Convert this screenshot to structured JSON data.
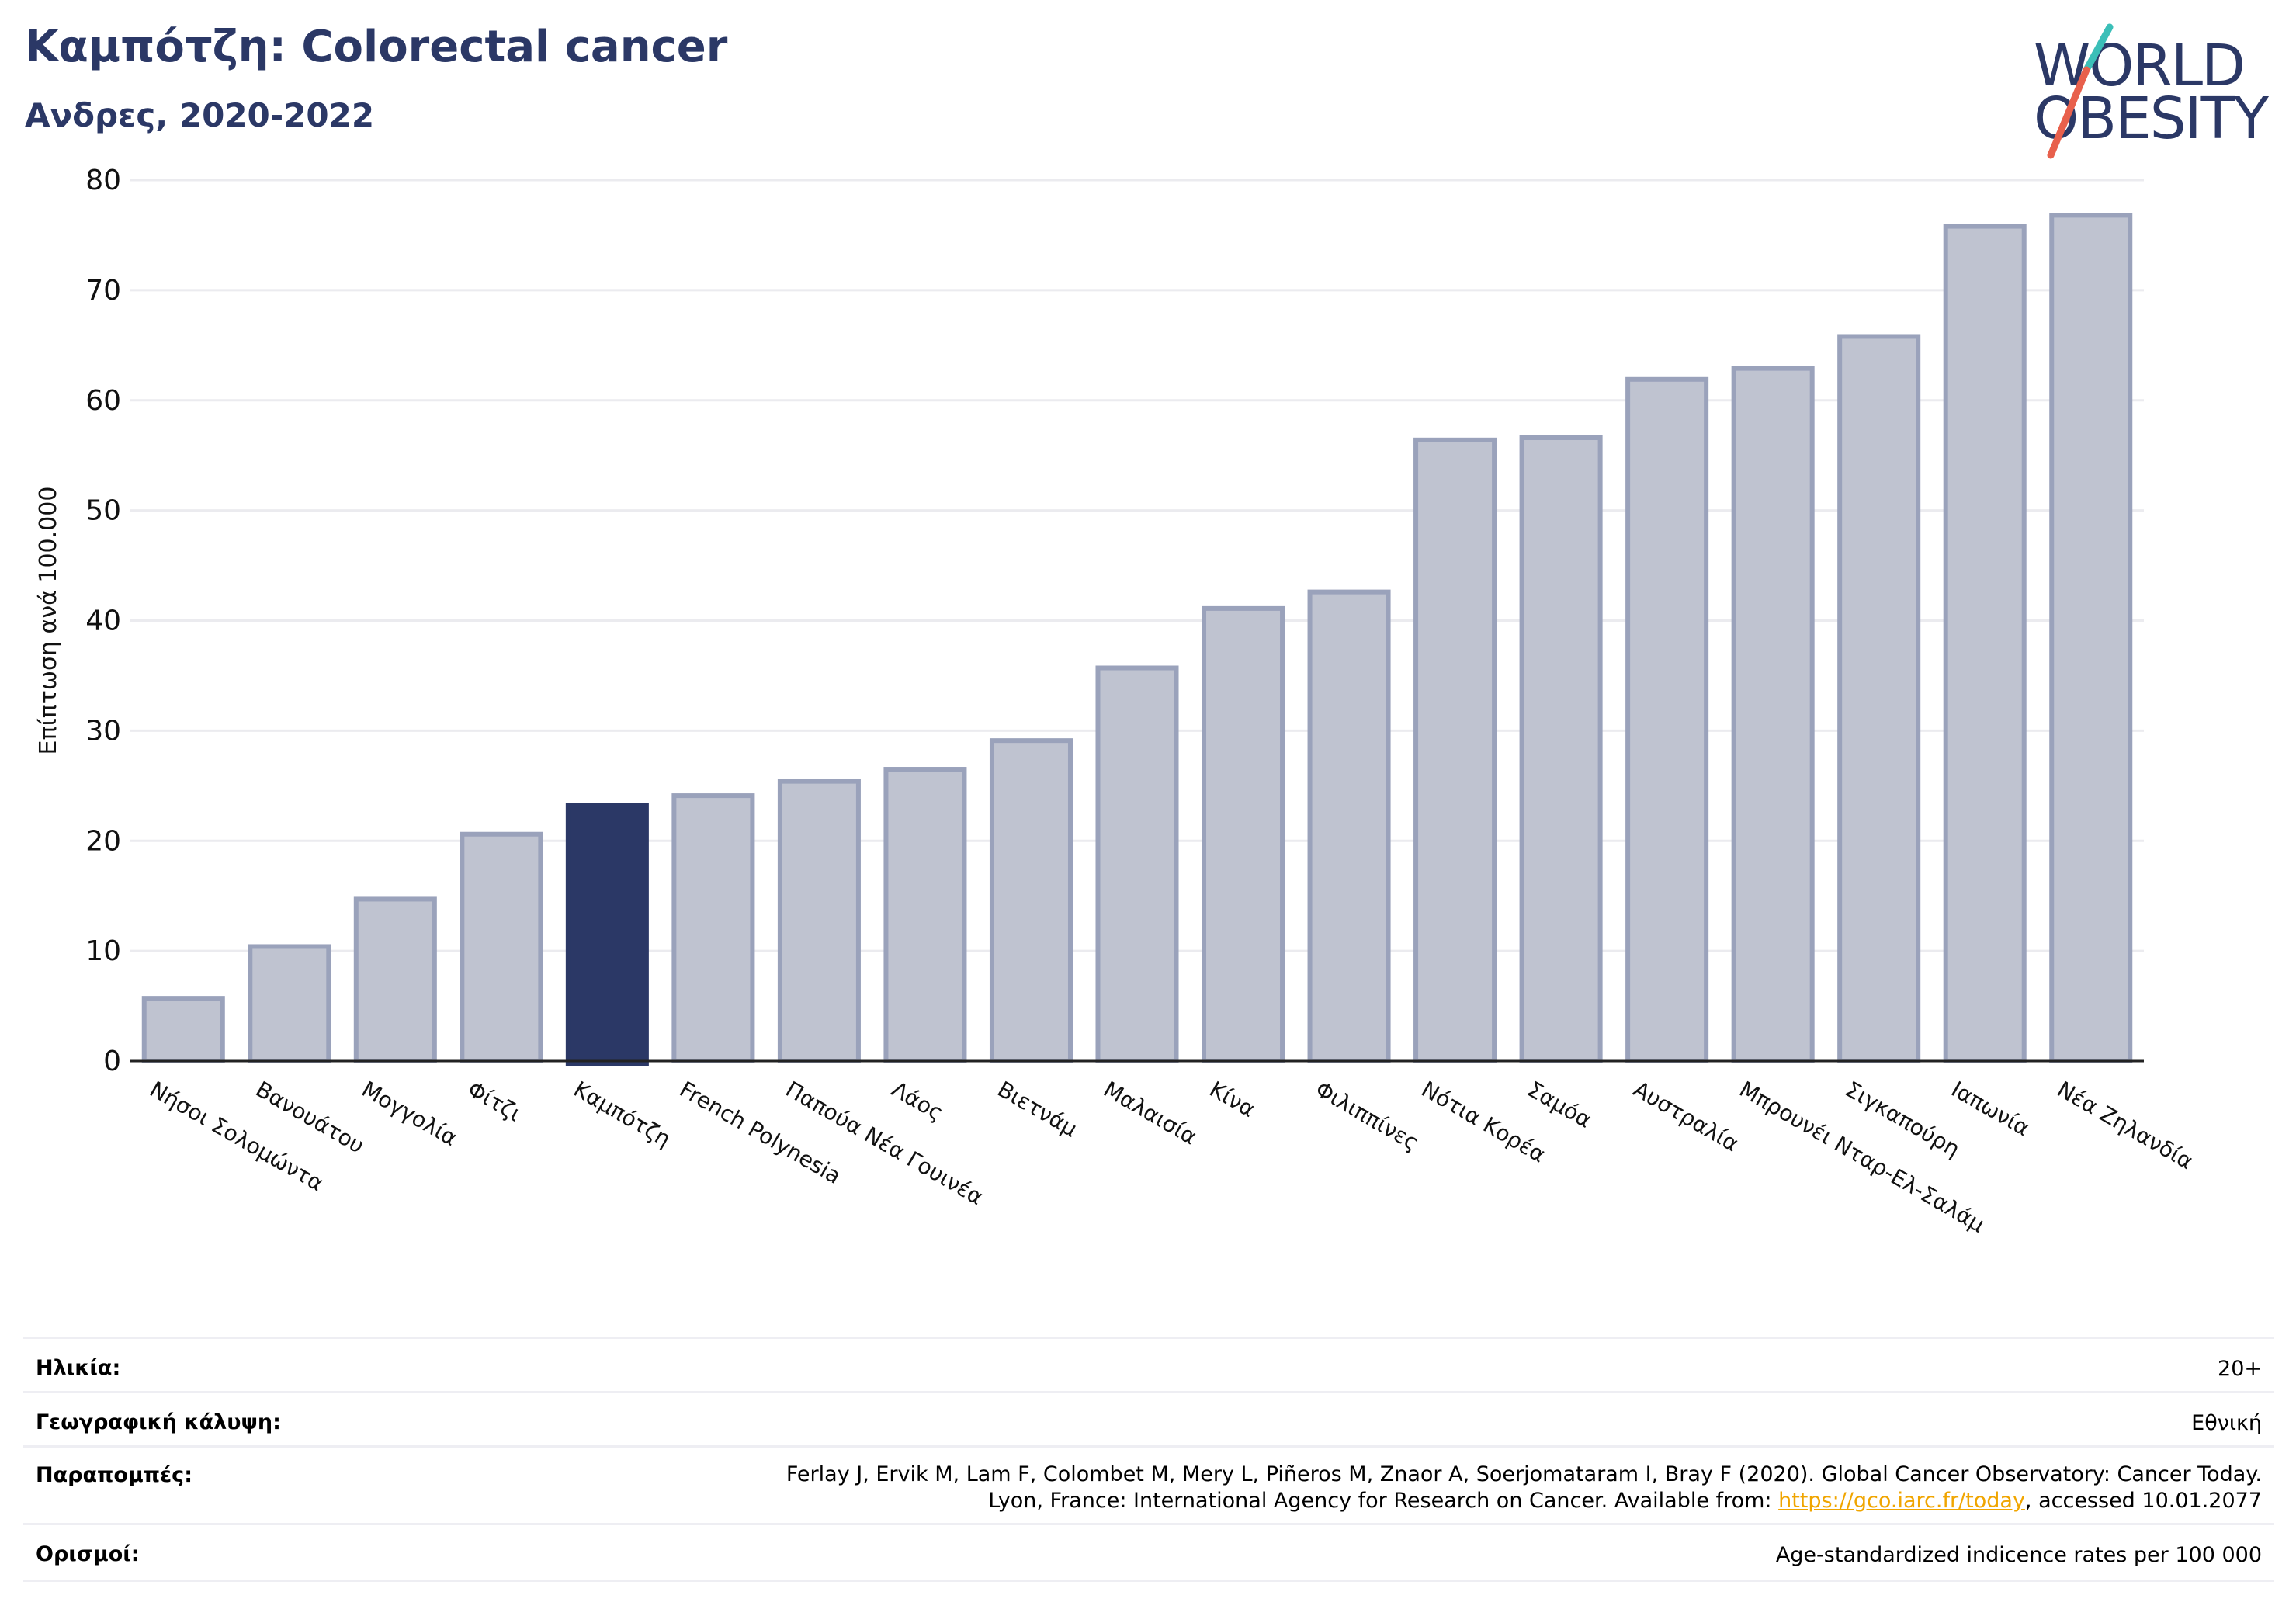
{
  "header": {
    "title": "Καμπότζη: Colorectal cancer",
    "subtitle": "Ανδρες, 2020-2022"
  },
  "logo": {
    "line1": "WORLD",
    "line2": "OBESITY",
    "accent_teal": "#3bbfb8",
    "accent_red": "#e8604c"
  },
  "colors": {
    "bar": "#bfc3d0",
    "bar_edge": "#9aa2bb",
    "highlight": "#2b3866",
    "grid": "#ebebef"
  },
  "chart_data": {
    "type": "bar",
    "ylabel": "Επίπτωση ανά 100.000",
    "ylim": [
      0,
      80
    ],
    "yticks": [
      0,
      10,
      20,
      30,
      40,
      50,
      60,
      70,
      80
    ],
    "categories": [
      "Νήσοι Σολομώντα",
      "Βανουάτου",
      "Μογγολία",
      "Φίτζι",
      "Καμπότζη",
      "French Polynesia",
      "Παπούα Νέα Γουινέα",
      "Λάος",
      "Βιετνάμ",
      "Μαλαισία",
      "Κίνα",
      "Φιλιππίνες",
      "Νότια Κορέα",
      "Σαμόα",
      "Αυστραλία",
      "Μπρουνέι Νταρ-Ελ-Σαλάμ",
      "Σιγκαπούρη",
      "Ιαπωνία",
      "Νέα Ζηλανδία"
    ],
    "values": [
      5.7,
      10.4,
      14.7,
      20.6,
      23.2,
      24.1,
      25.4,
      26.5,
      29.1,
      35.7,
      41.1,
      42.6,
      56.4,
      56.6,
      61.9,
      62.9,
      65.8,
      75.8,
      76.8
    ],
    "highlight": "Καμπότζη",
    "grid": true
  },
  "meta": {
    "age_label": "Ηλικία:",
    "age_value": "20+",
    "coverage_label": "Γεωγραφική κάλυψη:",
    "coverage_value": "Εθνική",
    "refs_label": "Παραπομπές:",
    "refs_line1": "Ferlay J, Ervik M, Lam F, Colombet M, Mery L, Piñeros M, Znaor A, Soerjomataram I, Bray F (2020). Global Cancer Observatory: Cancer Today.",
    "refs_line2a": "Lyon, France: International Agency for Research on Cancer. Available from: ",
    "refs_link": "https://gco.iarc.fr/today",
    "refs_line2b": ", accessed 10.01.2077",
    "defs_label": "Ορισμοί:",
    "defs_value": "Age-standardized indicence rates per 100 000"
  }
}
